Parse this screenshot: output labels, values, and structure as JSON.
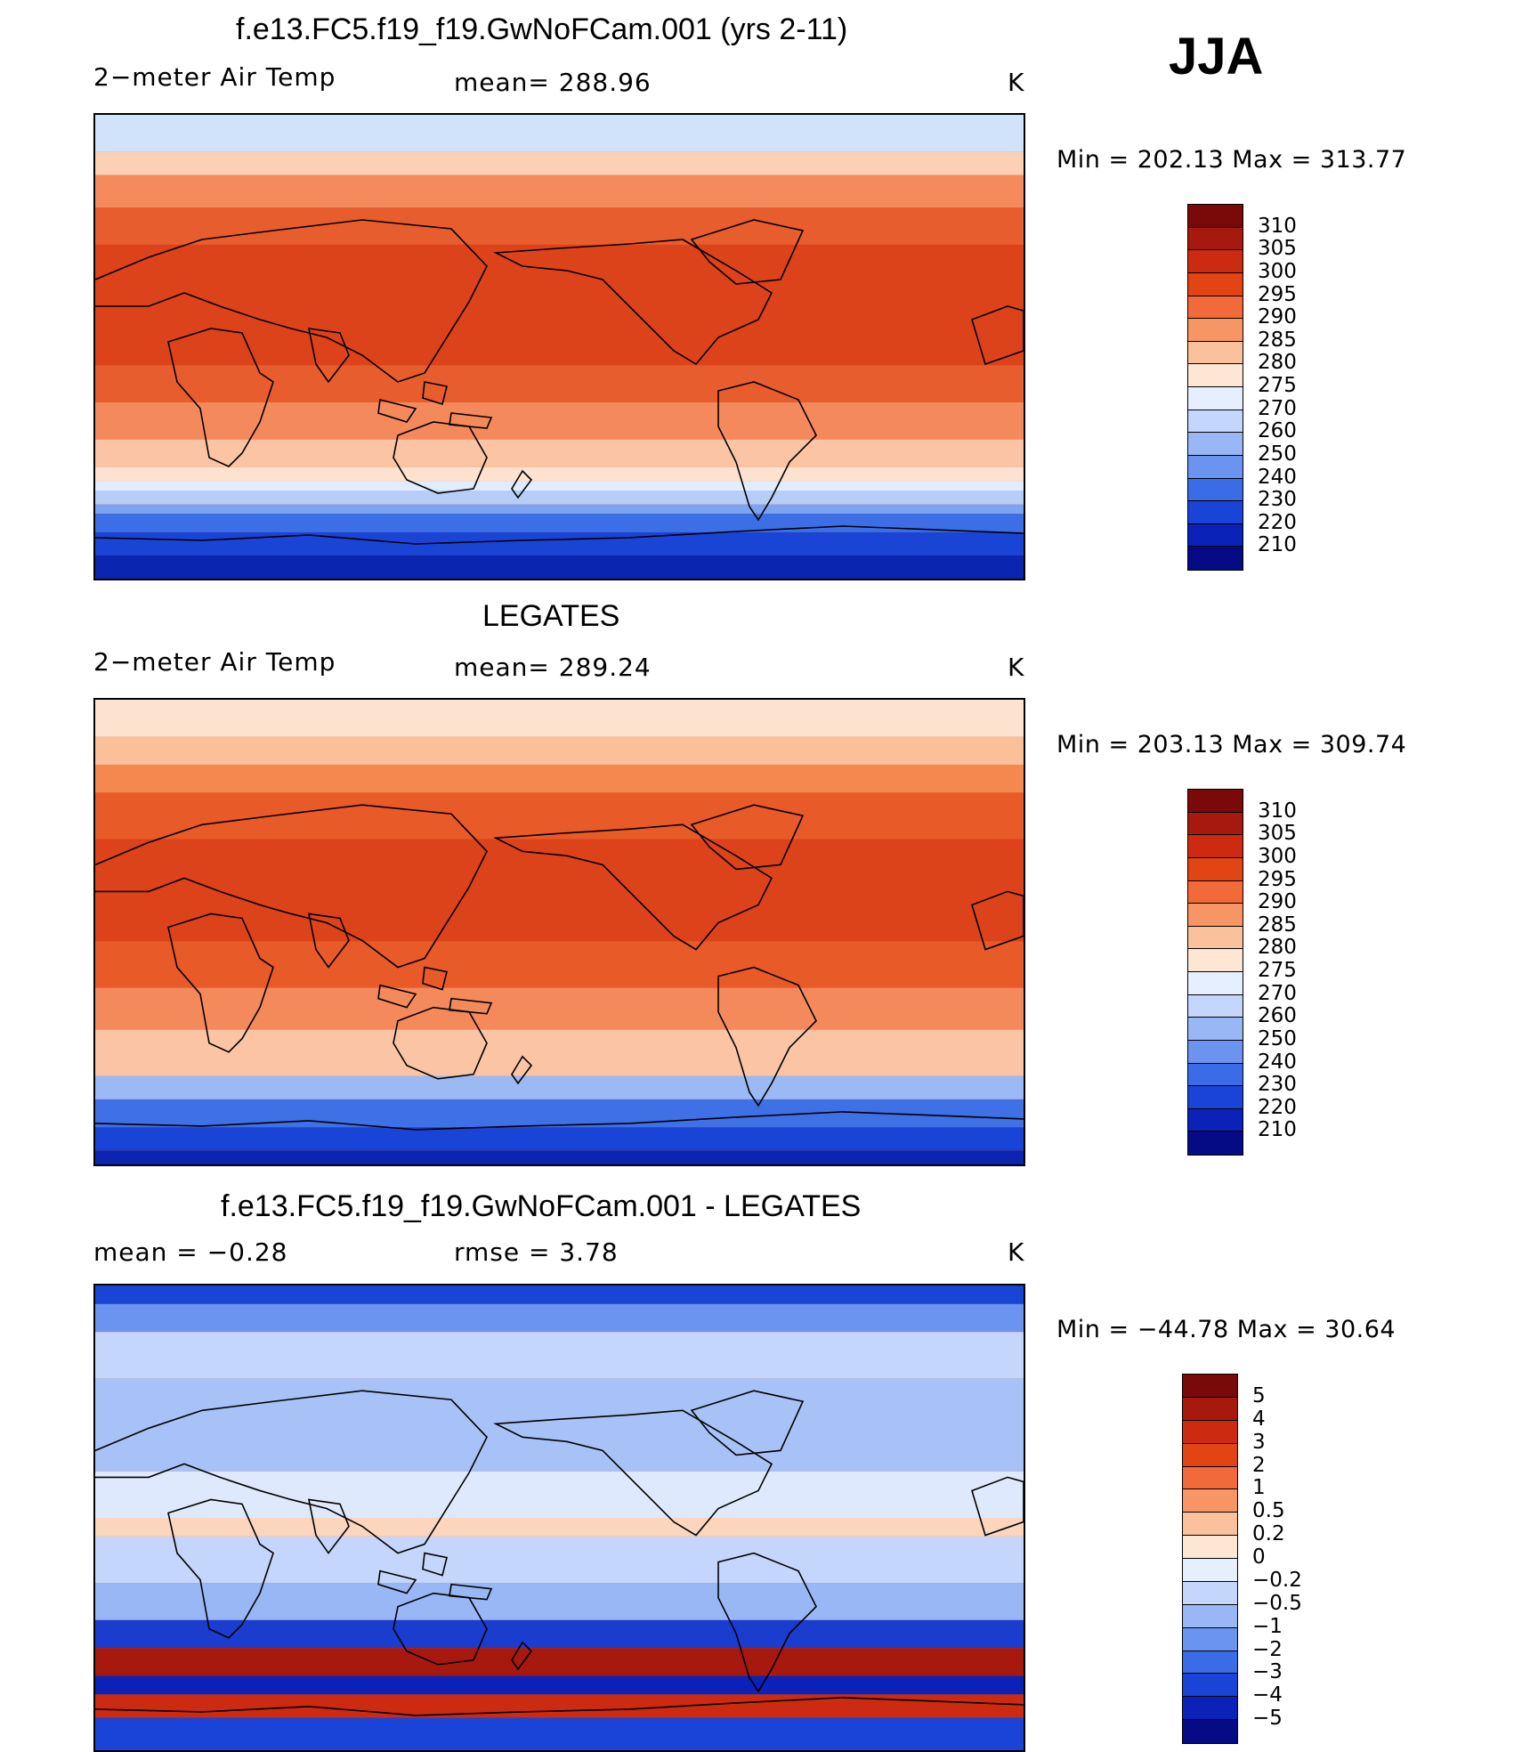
{
  "season": "JJA",
  "panels": [
    {
      "id": "model",
      "title": "f.e13.FC5.f19_f19.GwNoFCam.001 (yrs 2-11)",
      "left_label": "2−meter Air Temp",
      "center_label": "mean=  288.96",
      "units": "K",
      "minmax": "Min  =  202.13  Max  =  313.77",
      "colorbar": {
        "labels": [
          "310",
          "305",
          "300",
          "295",
          "290",
          "285",
          "280",
          "275",
          "270",
          "260",
          "250",
          "240",
          "230",
          "220",
          "210"
        ],
        "colors": [
          "#7a0a0a",
          "#a7190e",
          "#cc2b12",
          "#e24413",
          "#f26a3a",
          "#f79565",
          "#fbc09c",
          "#fde6d4",
          "#e6efff",
          "#c4d6fb",
          "#99b6f5",
          "#6a94ef",
          "#3a6ce7",
          "#1a43d8",
          "#0a22b8",
          "#040b84"
        ]
      },
      "bands": [
        [
          "#d0e3fb",
          0,
          8
        ],
        [
          "#fbd0b4",
          8,
          13
        ],
        [
          "#f58b5c",
          13,
          20
        ],
        [
          "#e85d2e",
          20,
          28
        ],
        [
          "#dc431a",
          28,
          54
        ],
        [
          "#e85d2e",
          54,
          62
        ],
        [
          "#f48a5c",
          62,
          70
        ],
        [
          "#fbc4a4",
          70,
          76
        ],
        [
          "#fde2d0",
          76,
          79
        ],
        [
          "#e2ecfd",
          79,
          81
        ],
        [
          "#b6cdf8",
          81,
          84
        ],
        [
          "#7ea4f1",
          84,
          86
        ],
        [
          "#3c6fe6",
          86,
          90
        ],
        [
          "#1a44d6",
          90,
          95
        ],
        [
          "#0a26b0",
          95,
          100
        ]
      ]
    },
    {
      "id": "obs",
      "title": "LEGATES",
      "left_label": "2−meter Air Temp",
      "center_label": "mean=  289.24",
      "units": "K",
      "minmax": "Min  =  203.13  Max  =  309.74",
      "colorbar": {
        "labels": [
          "310",
          "305",
          "300",
          "295",
          "290",
          "285",
          "280",
          "275",
          "270",
          "260",
          "250",
          "240",
          "230",
          "220",
          "210"
        ],
        "colors": [
          "#7a0a0a",
          "#a7190e",
          "#cc2b12",
          "#e24413",
          "#f26a3a",
          "#f79565",
          "#fbc09c",
          "#fde6d4",
          "#e6efff",
          "#c4d6fb",
          "#99b6f5",
          "#6a94ef",
          "#3a6ce7",
          "#1a43d8",
          "#0a22b8",
          "#040b84"
        ]
      },
      "bands": [
        [
          "#fde2d0",
          0,
          8
        ],
        [
          "#fbbf9a",
          8,
          14
        ],
        [
          "#f4884f",
          14,
          20
        ],
        [
          "#e85a28",
          20,
          30
        ],
        [
          "#dc431a",
          30,
          52
        ],
        [
          "#e85a28",
          52,
          62
        ],
        [
          "#f48a5c",
          62,
          71
        ],
        [
          "#fbc4a4",
          71,
          81
        ],
        [
          "#9bb9f4",
          81,
          86
        ],
        [
          "#3f70e5",
          86,
          92
        ],
        [
          "#1a44d6",
          92,
          97
        ],
        [
          "#0a26b0",
          97,
          100
        ]
      ]
    },
    {
      "id": "diff",
      "title": "f.e13.FC5.f19_f19.GwNoFCam.001 - LEGATES",
      "left_label": "mean =    −0.28",
      "center_label": "rmse =     3.78",
      "units": "K",
      "minmax": "Min  =  −44.78  Max  =    30.64",
      "colorbar": {
        "labels": [
          "5",
          "4",
          "3",
          "2",
          "1",
          "0.5",
          "0.2",
          "0",
          "−0.2",
          "−0.5",
          "−1",
          "−2",
          "−3",
          "−4",
          "−5"
        ],
        "colors": [
          "#7a0a0a",
          "#a7190e",
          "#cc2b12",
          "#e24413",
          "#f26a3a",
          "#f79565",
          "#fbc09c",
          "#fde6d4",
          "#e6efff",
          "#c4d6fb",
          "#99b6f5",
          "#6a94ef",
          "#3a6ce7",
          "#1a43d8",
          "#0a22b8",
          "#040b84"
        ]
      },
      "bands": [
        [
          "#1a44d6",
          0,
          4
        ],
        [
          "#6a94ef",
          4,
          10
        ],
        [
          "#c4d6fb",
          10,
          20
        ],
        [
          "#a8c2f7",
          20,
          40
        ],
        [
          "#dfe9fd",
          40,
          50
        ],
        [
          "#fbd6bd",
          50,
          54
        ],
        [
          "#c4d6fb",
          54,
          64
        ],
        [
          "#99b6f5",
          64,
          72
        ],
        [
          "#1a3ccf",
          72,
          78
        ],
        [
          "#a7190e",
          78,
          84
        ],
        [
          "#0a22b8",
          84,
          88
        ],
        [
          "#cc2b12",
          88,
          93
        ],
        [
          "#1a43d8",
          93,
          100
        ]
      ]
    }
  ]
}
